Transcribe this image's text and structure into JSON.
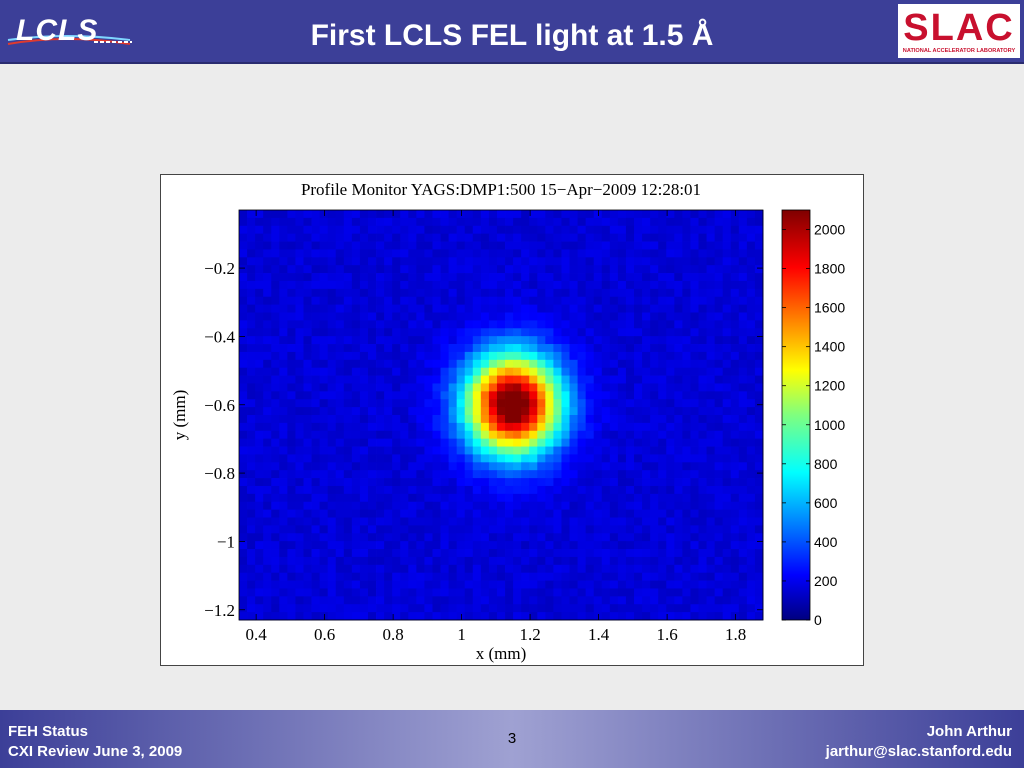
{
  "slide": {
    "title": "First LCLS FEL light at 1.5 Å",
    "page_number": "3",
    "footer_left": [
      "FEH Status",
      "CXI Review June 3, 2009"
    ],
    "footer_right": [
      "John Arthur",
      "jarthur@slac.stanford.edu"
    ],
    "logos": {
      "left": "LCLS",
      "right": "SLAC",
      "right_subtitle": "NATIONAL ACCELERATOR LABORATORY"
    }
  },
  "chart_data": {
    "type": "heatmap",
    "title": "Profile Monitor YAGS:DMP1:500 15−Apr−2009 12:28:01",
    "xlabel": "x  (mm)",
    "ylabel": "y  (mm)",
    "xlim": [
      0.35,
      1.88
    ],
    "ylim": [
      -1.23,
      -0.03
    ],
    "x_ticks": [
      0.4,
      0.6,
      0.8,
      1.0,
      1.2,
      1.4,
      1.6,
      1.8
    ],
    "x_tick_labels": [
      "0.4",
      "0.6",
      "0.8",
      "1",
      "1.2",
      "1.4",
      "1.6",
      "1.8"
    ],
    "y_ticks": [
      -0.2,
      -0.4,
      -0.6,
      -0.8,
      -1.0,
      -1.2
    ],
    "y_tick_labels": [
      "−0.2",
      "−0.4",
      "−0.6",
      "−0.8",
      "−1",
      "−1.2"
    ],
    "colorbar": {
      "range": [
        0,
        2100
      ],
      "ticks": [
        0,
        200,
        400,
        600,
        800,
        1000,
        1200,
        1400,
        1600,
        1800,
        2000
      ],
      "tick_labels": [
        "0",
        "200",
        "400",
        "600",
        "800",
        "1000",
        "1200",
        "1400",
        "1600",
        "1800",
        "2000"
      ],
      "colormap": "jet"
    },
    "beam": {
      "center_x": 1.15,
      "center_y": -0.6,
      "peak": 2100,
      "sigma_x": 0.095,
      "sigma_y": 0.1,
      "background": 180
    },
    "grid": false
  }
}
